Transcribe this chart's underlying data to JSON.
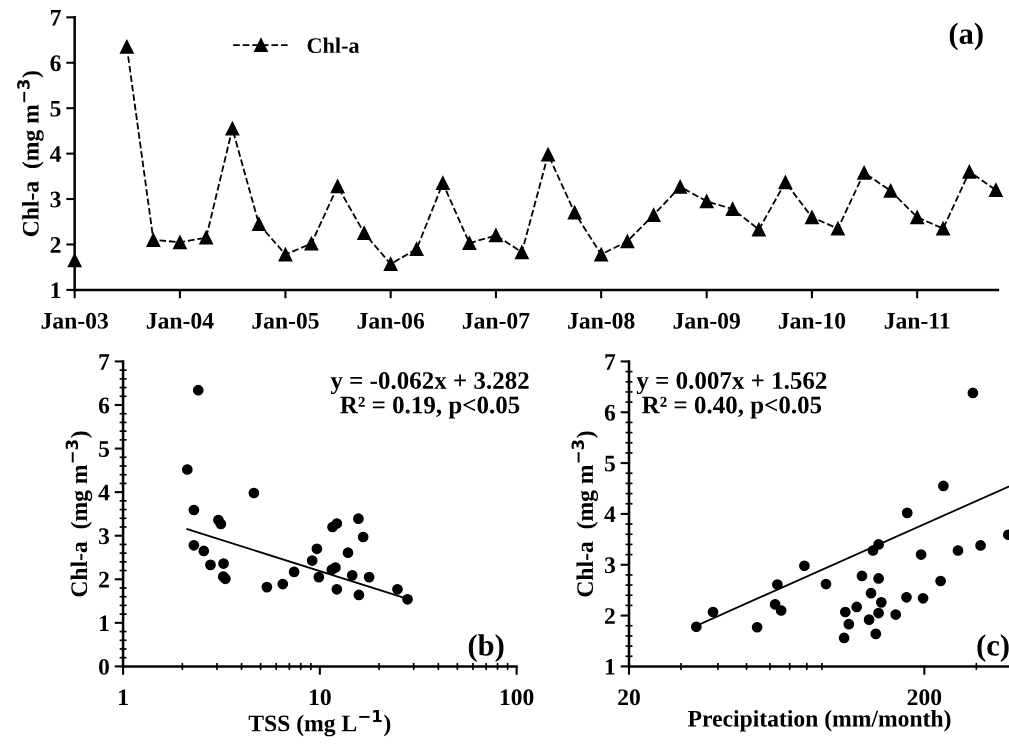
{
  "chart_data": [
    {
      "type": "line",
      "ylabel": "Chl-a  (mg m$^{−3}$)",
      "annotations": [
        "(a)"
      ],
      "legend": "top left",
      "grid": false,
      "marker": "triangle",
      "line_style": "dashed",
      "x": [
        "2003-01",
        "2003-04",
        "2003-07",
        "2003-10",
        "2004-01",
        "2004-04",
        "2004-07",
        "2004-10",
        "2005-01",
        "2005-04",
        "2005-07",
        "2005-10",
        "2006-01",
        "2006-04",
        "2006-07",
        "2006-10",
        "2007-01",
        "2007-04",
        "2007-07",
        "2007-10",
        "2008-01",
        "2008-04",
        "2008-07",
        "2008-10",
        "2009-01",
        "2009-04",
        "2009-07",
        "2009-10",
        "2010-01",
        "2010-04",
        "2010-07",
        "2010-10",
        "2011-01",
        "2011-04",
        "2011-07",
        "2011-10"
      ],
      "series": [
        {
          "name": "Chl-a",
          "color": "#000000",
          "values": [
            1.65,
            null,
            6.35,
            2.1,
            2.05,
            2.15,
            4.55,
            2.45,
            1.78,
            2.02,
            3.28,
            2.25,
            1.57,
            1.9,
            3.35,
            2.03,
            2.2,
            1.83,
            3.98,
            2.7,
            1.78,
            2.07,
            2.65,
            3.27,
            2.95,
            2.78,
            2.33,
            3.37,
            2.6,
            2.35,
            3.58,
            3.18,
            2.6,
            2.35,
            3.6,
            3.2
          ]
        }
      ],
      "xlim": [
        "2003-01-01",
        "2011-10-08"
      ],
      "xticks": [
        {
          "value": "2003-01",
          "label": "Jan-03"
        },
        {
          "value": "2004-01",
          "label": "Jan-04"
        },
        {
          "value": "2005-01",
          "label": "Jan-05"
        },
        {
          "value": "2006-01",
          "label": "Jan-06"
        },
        {
          "value": "2007-01",
          "label": "Jan-07"
        },
        {
          "value": "2008-01",
          "label": "Jan-08"
        },
        {
          "value": "2009-01",
          "label": "Jan-09"
        },
        {
          "value": "2010-01",
          "label": "Jan-10"
        },
        {
          "value": "2011-01",
          "label": "Jan-11"
        }
      ],
      "ylim": [
        1,
        7
      ],
      "yticks": [
        1,
        2,
        3,
        4,
        5,
        6,
        7
      ]
    },
    {
      "type": "scatter",
      "xlabel": "TSS (mg L$^{−1}$)",
      "ylabel": "Chl-a  (mg m$^{−3}$)",
      "annotations": [
        "y = -0.062x + 3.282",
        "R² = 0.19, p<0.05",
        "(b)"
      ],
      "log": "x",
      "grid": false,
      "marker": "circle",
      "series": [
        {
          "color": "#000000",
          "x": [
            2.12,
            2.41,
            2.29,
            2.29,
            2.57,
            2.78,
            3.05,
            3.14,
            3.24,
            3.23,
            3.31,
            4.62,
            5.38,
            6.48,
            7.4,
            9.14,
            9.66,
            9.88,
            11.6,
            12.2,
            11.5,
            12.0,
            12.2,
            13.9,
            14.6,
            15.7,
            15.8,
            16.6,
            17.8,
            24.8,
            27.9
          ],
          "values": [
            4.52,
            6.34,
            3.59,
            2.78,
            2.65,
            2.33,
            3.36,
            3.27,
            2.36,
            2.06,
            2.01,
            3.98,
            1.82,
            1.89,
            2.17,
            2.43,
            2.7,
            2.05,
            3.2,
            3.28,
            2.22,
            2.27,
            1.77,
            2.61,
            2.09,
            3.39,
            1.64,
            2.97,
            2.05,
            1.77,
            1.54
          ]
        },
        {
          "type": "line",
          "marker": "none",
          "color": "#000000",
          "x": [
            2.12,
            27.9
          ],
          "values": [
            3.15,
            1.55
          ]
        }
      ],
      "xlim": [
        1,
        100
      ],
      "xticks": [
        1,
        10,
        100
      ],
      "ylim": [
        0,
        7
      ],
      "yticks": [
        0,
        1,
        2,
        3,
        4,
        5,
        6,
        7
      ]
    },
    {
      "type": "scatter",
      "xlabel": "Precipitation (mm/month)",
      "ylabel": "Chl-a  (mg m$^{−3}$)",
      "annotations": [
        "y = 0.007x + 1.562",
        "R² = 0.40, p<0.05",
        "(c)"
      ],
      "log": "x",
      "grid": false,
      "marker": "circle",
      "series": [
        {
          "color": "#000000",
          "x": [
            33.8,
            38.5,
            54.3,
            63.6,
            62.5,
            65.5,
            78.5,
            92.9,
            107,
            108,
            111,
            118,
            123,
            130,
            132,
            134,
            137,
            140,
            140,
            140,
            143,
            160,
            174,
            175,
            195,
            198,
            227,
            232,
            260,
            292,
            310,
            385
          ],
          "values": [
            1.78,
            2.07,
            1.77,
            2.61,
            2.22,
            2.1,
            2.98,
            2.62,
            1.56,
            2.07,
            1.83,
            2.17,
            2.78,
            1.92,
            2.44,
            3.28,
            1.64,
            3.4,
            2.05,
            2.73,
            2.26,
            2.02,
            2.36,
            4.02,
            3.2,
            2.34,
            2.68,
            4.55,
            3.28,
            6.38,
            3.38,
            3.59
          ]
        },
        {
          "type": "line",
          "marker": "none",
          "color": "#000000",
          "x": [
            33.8,
            390
          ],
          "values": [
            1.8,
            4.55
          ]
        }
      ],
      "xlim": [
        20,
        390
      ],
      "xticks": [
        20,
        200
      ],
      "ylim": [
        1,
        7
      ],
      "yticks": [
        1,
        2,
        3,
        4,
        5,
        6,
        7
      ]
    }
  ]
}
